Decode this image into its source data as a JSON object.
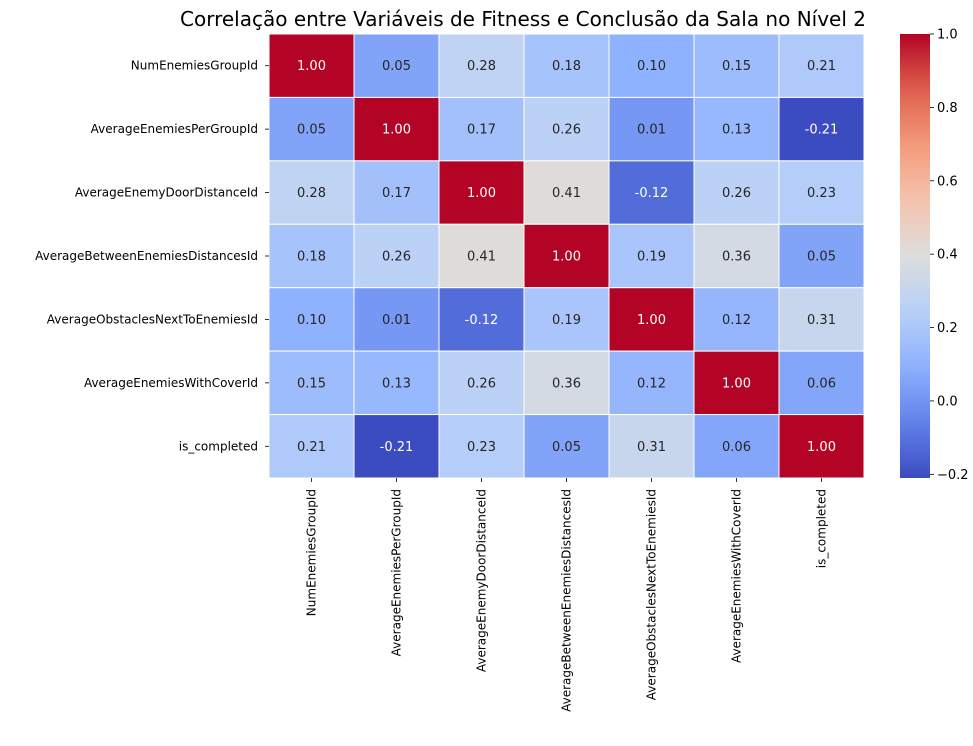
{
  "chart_data": {
    "type": "heatmap",
    "title": "Correlação entre Variáveis de Fitness e Conclusão da Sala no Nível 2",
    "xlabel": "",
    "ylabel": "",
    "colormap": "coolwarm",
    "rows": [
      "NumEnemiesGroupId",
      "AverageEnemiesPerGroupId",
      "AverageEnemyDoorDistanceId",
      "AverageBetweenEnemiesDistancesId",
      "AverageObstaclesNextToEnemiesId",
      "AverageEnemiesWithCoverId",
      "is_completed"
    ],
    "columns": [
      "NumEnemiesGroupId",
      "AverageEnemiesPerGroupId",
      "AverageEnemyDoorDistanceId",
      "AverageBetweenEnemiesDistancesId",
      "AverageObstaclesNextToEnemiesId",
      "AverageEnemiesWithCoverId",
      "is_completed"
    ],
    "values": [
      [
        1.0,
        0.05,
        0.28,
        0.18,
        0.1,
        0.15,
        0.21
      ],
      [
        0.05,
        1.0,
        0.17,
        0.26,
        0.01,
        0.13,
        -0.21
      ],
      [
        0.28,
        0.17,
        1.0,
        0.41,
        -0.12,
        0.26,
        0.23
      ],
      [
        0.18,
        0.26,
        0.41,
        1.0,
        0.19,
        0.36,
        0.05
      ],
      [
        0.1,
        0.01,
        -0.12,
        0.19,
        1.0,
        0.12,
        0.31
      ],
      [
        0.15,
        0.13,
        0.26,
        0.36,
        0.12,
        1.0,
        0.06
      ],
      [
        0.21,
        -0.21,
        0.23,
        0.05,
        0.31,
        0.06,
        1.0
      ]
    ],
    "cell_labels": [
      [
        "1.00",
        "0.05",
        "0.28",
        "0.18",
        "0.10",
        "0.15",
        "0.21"
      ],
      [
        "0.05",
        "1.00",
        "0.17",
        "0.26",
        "0.01",
        "0.13",
        "-0.21"
      ],
      [
        "0.28",
        "0.17",
        "1.00",
        "0.41",
        "-0.12",
        "0.26",
        "0.23"
      ],
      [
        "0.18",
        "0.26",
        "0.41",
        "1.00",
        "0.19",
        "0.36",
        "0.05"
      ],
      [
        "0.10",
        "0.01",
        "-0.12",
        "0.19",
        "1.00",
        "0.12",
        "0.31"
      ],
      [
        "0.15",
        "0.13",
        "0.26",
        "0.36",
        "0.12",
        "1.00",
        "0.06"
      ],
      [
        "0.21",
        "-0.21",
        "0.23",
        "0.05",
        "0.31",
        "0.06",
        "1.00"
      ]
    ],
    "colorbar": {
      "vmin": -0.21,
      "vmax": 1.0,
      "ticks": [
        -0.2,
        0.0,
        0.2,
        0.4,
        0.6,
        0.8,
        1.0
      ],
      "tick_labels": [
        "−0.2",
        "0.0",
        "0.2",
        "0.4",
        "0.6",
        "0.8",
        "1.0"
      ]
    },
    "grid": false,
    "cell_borders": "white",
    "legend": "colorbar-right"
  }
}
